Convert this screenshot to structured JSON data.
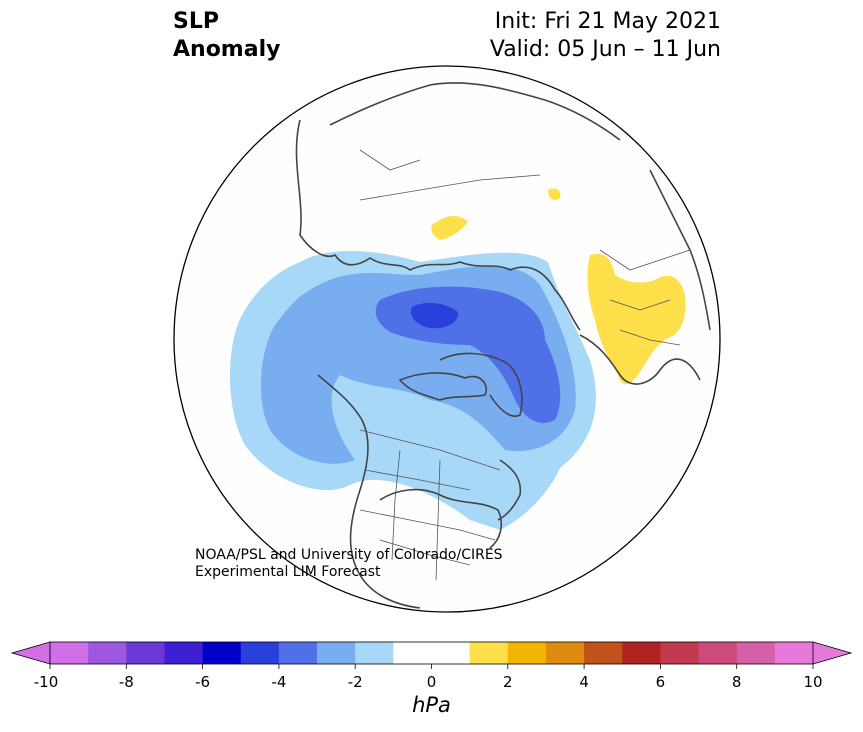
{
  "title": {
    "line1": "SLP",
    "line2": "Anomaly"
  },
  "subtitle": {
    "init": "Init: Fri 21 May 2021",
    "valid": "Valid: 05 Jun – 11 Jun"
  },
  "credit": {
    "line1": "NOAA/PSL and University of Colorado/CIRES",
    "line2": "Experimental LIM Forecast"
  },
  "colorbar": {
    "units": "hPa",
    "ticks": [
      "-10",
      "-8",
      "-6",
      "-4",
      "-2",
      "0",
      "2",
      "4",
      "6",
      "8",
      "10"
    ],
    "levels": [
      -10,
      -9,
      -8,
      -7,
      -6,
      -5,
      -4,
      -3,
      -2,
      -1,
      1,
      2,
      3,
      4,
      5,
      6,
      7,
      8,
      9,
      10
    ],
    "colors": [
      "#d16fe6",
      "#9e58e0",
      "#6b39d9",
      "#3e1fd4",
      "#0000c8",
      "#2a40dc",
      "#4f70e6",
      "#78aef0",
      "#a8d8f8",
      "#ffffff",
      "#ffffff",
      "#ffe04a",
      "#f2b500",
      "#df8a10",
      "#c2521c",
      "#b22222",
      "#c23a4f",
      "#cc4b7a",
      "#d460a8",
      "#e679da"
    ],
    "under_color": "#d16fe6",
    "over_color": "#e679da"
  },
  "map": {
    "projection": "north polar stereographic",
    "land_fill": "#ffffff",
    "coast_color": "#444444"
  }
}
